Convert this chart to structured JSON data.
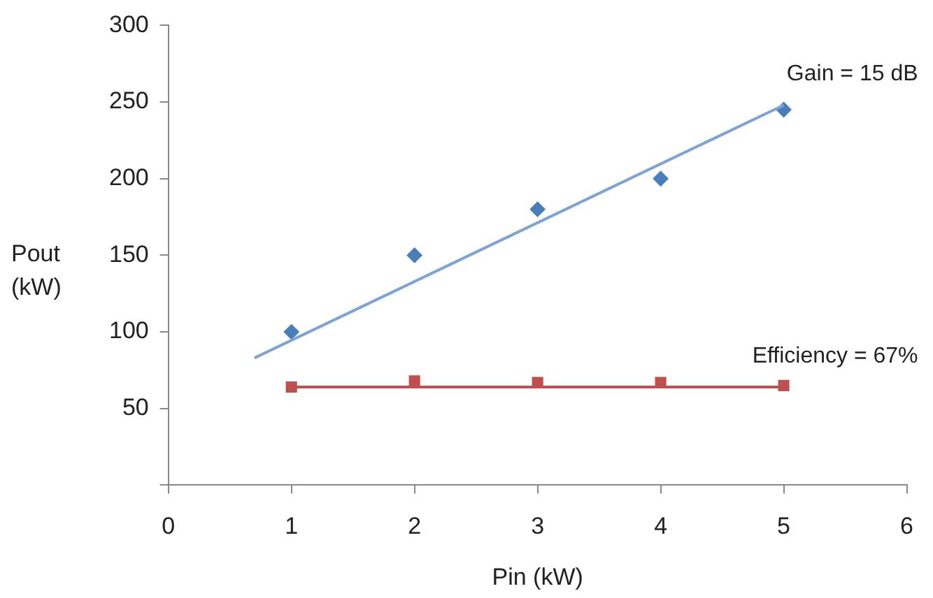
{
  "chart_data": {
    "type": "scatter",
    "xlabel": "Pin (kW)",
    "ylabel": "Pout (kW)",
    "xlim": [
      0,
      6
    ],
    "xticks": [
      0,
      1,
      2,
      3,
      4,
      5,
      6
    ],
    "ylim": [
      0,
      300
    ],
    "yticks": [
      {
        "value": 0,
        "label": null
      },
      50,
      100,
      150,
      200,
      250,
      300
    ],
    "grid": false,
    "legend": false,
    "series": [
      {
        "type": "line",
        "color": "#7ba3d6",
        "marker": "none",
        "x": [
          0.7,
          5
        ],
        "values": [
          83,
          248
        ]
      },
      {
        "type": "line",
        "color": "#c0504d",
        "marker": "none",
        "x": [
          1,
          5
        ],
        "values": [
          64,
          64
        ]
      },
      {
        "type": "scatter",
        "color": "#4a7ebb",
        "marker": "diamond",
        "x": [
          1,
          2,
          3,
          4,
          5
        ],
        "values": [
          100,
          150,
          180,
          200,
          245
        ]
      },
      {
        "type": "scatter",
        "color": "#c0504d",
        "marker": "square",
        "x": [
          1,
          2,
          3,
          4,
          5
        ],
        "values": [
          64,
          68,
          67,
          67,
          65
        ]
      }
    ],
    "annotations": [
      "Gain = 15 dB",
      "Efficiency = 67%"
    ]
  }
}
